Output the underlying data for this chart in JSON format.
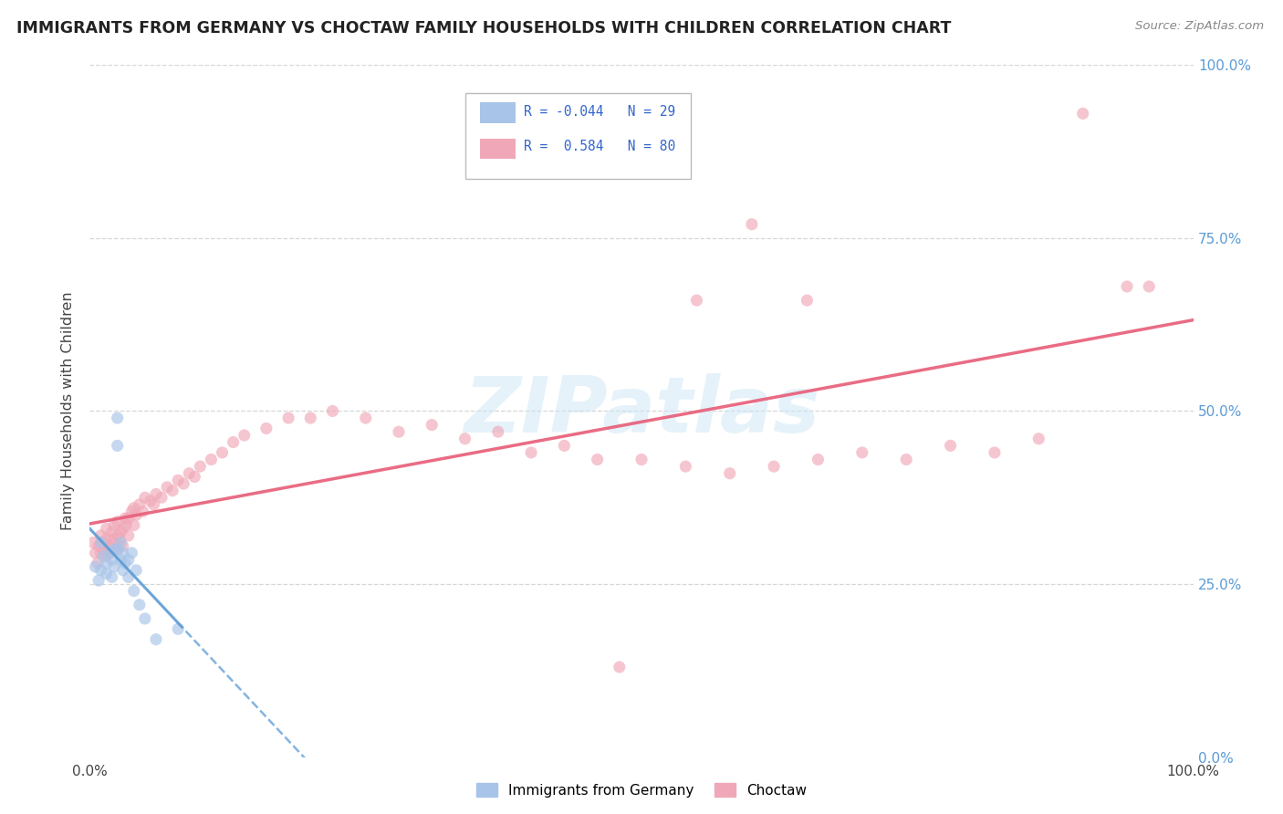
{
  "title": "IMMIGRANTS FROM GERMANY VS CHOCTAW FAMILY HOUSEHOLDS WITH CHILDREN CORRELATION CHART",
  "source": "Source: ZipAtlas.com",
  "ylabel": "Family Households with Children",
  "background_color": "#ffffff",
  "grid_color": "#cccccc",
  "blue_color": "#a8c4e8",
  "pink_color": "#f0a8b8",
  "blue_line_color": "#5b9bd5",
  "pink_line_color": "#e8607a",
  "scatter_alpha": 0.65,
  "scatter_size": 90,
  "watermark_text": "ZIPatlas",
  "blue_x": [
    0.005,
    0.008,
    0.01,
    0.01,
    0.012,
    0.015,
    0.015,
    0.018,
    0.02,
    0.02,
    0.022,
    0.022,
    0.025,
    0.025,
    0.025,
    0.028,
    0.028,
    0.03,
    0.03,
    0.032,
    0.035,
    0.035,
    0.038,
    0.04,
    0.042,
    0.045,
    0.05,
    0.06,
    0.08
  ],
  "blue_y": [
    0.275,
    0.255,
    0.31,
    0.27,
    0.29,
    0.28,
    0.265,
    0.295,
    0.285,
    0.26,
    0.3,
    0.275,
    0.49,
    0.45,
    0.3,
    0.285,
    0.31,
    0.27,
    0.295,
    0.28,
    0.26,
    0.285,
    0.295,
    0.24,
    0.27,
    0.22,
    0.2,
    0.17,
    0.185
  ],
  "pink_x": [
    0.003,
    0.005,
    0.007,
    0.008,
    0.01,
    0.01,
    0.012,
    0.013,
    0.015,
    0.015,
    0.015,
    0.017,
    0.018,
    0.02,
    0.02,
    0.02,
    0.022,
    0.022,
    0.025,
    0.025,
    0.025,
    0.027,
    0.028,
    0.03,
    0.03,
    0.032,
    0.033,
    0.035,
    0.035,
    0.038,
    0.04,
    0.04,
    0.042,
    0.045,
    0.048,
    0.05,
    0.055,
    0.058,
    0.06,
    0.065,
    0.07,
    0.075,
    0.08,
    0.085,
    0.09,
    0.095,
    0.1,
    0.11,
    0.12,
    0.13,
    0.14,
    0.16,
    0.18,
    0.2,
    0.22,
    0.25,
    0.28,
    0.31,
    0.34,
    0.37,
    0.4,
    0.43,
    0.46,
    0.5,
    0.54,
    0.58,
    0.62,
    0.66,
    0.7,
    0.74,
    0.78,
    0.82,
    0.86,
    0.9,
    0.94,
    0.48,
    0.55,
    0.6,
    0.65,
    0.96
  ],
  "pink_y": [
    0.31,
    0.295,
    0.28,
    0.305,
    0.32,
    0.295,
    0.31,
    0.3,
    0.29,
    0.315,
    0.33,
    0.305,
    0.295,
    0.315,
    0.3,
    0.325,
    0.31,
    0.335,
    0.3,
    0.32,
    0.34,
    0.315,
    0.325,
    0.305,
    0.33,
    0.345,
    0.335,
    0.32,
    0.345,
    0.355,
    0.335,
    0.36,
    0.35,
    0.365,
    0.355,
    0.375,
    0.37,
    0.365,
    0.38,
    0.375,
    0.39,
    0.385,
    0.4,
    0.395,
    0.41,
    0.405,
    0.42,
    0.43,
    0.44,
    0.455,
    0.465,
    0.475,
    0.49,
    0.49,
    0.5,
    0.49,
    0.47,
    0.48,
    0.46,
    0.47,
    0.44,
    0.45,
    0.43,
    0.43,
    0.42,
    0.41,
    0.42,
    0.43,
    0.44,
    0.43,
    0.45,
    0.44,
    0.46,
    0.93,
    0.68,
    0.13,
    0.66,
    0.77,
    0.66,
    0.68
  ]
}
